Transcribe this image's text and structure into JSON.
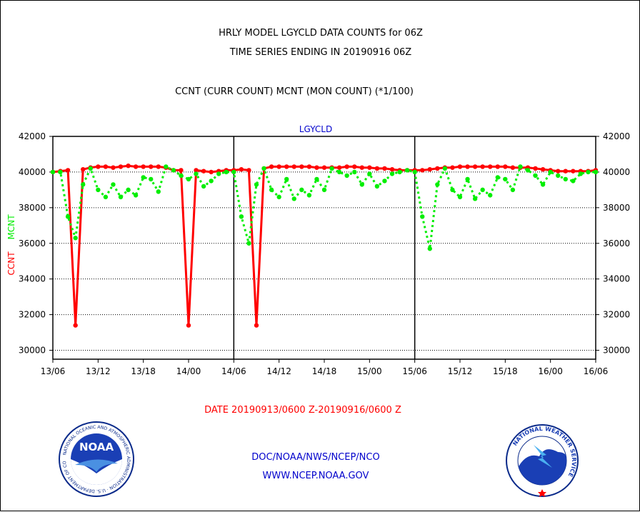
{
  "header": {
    "title_line1": "HRLY MODEL LGYCLD DATA COUNTS for 06Z",
    "title_line2": "TIME SERIES ENDING IN 20190916 06Z",
    "title_line3": "CCNT (CURR COUNT) MCNT (MON COUNT) (*1/100)"
  },
  "footer": {
    "date_range": "DATE 20190913/0600 Z-20190916/0600 Z",
    "org": "DOC/NOAA/NWS/NCEP/NCO",
    "url": "WWW.NCEP.NOAA.GOV"
  },
  "logos": {
    "noaa_text": "NOAA",
    "noaa_ring_text": "NATIONAL OCEANIC AND ATMOSPHERIC ADMINISTRATION · U.S. DEPARTMENT OF COMMERCE ·",
    "nws_ring_text": "NATIONAL WEATHER SERVICE"
  },
  "colors": {
    "ccnt": "#ff0000",
    "mcnt": "#00ee00",
    "panel_label": "#0000cc"
  },
  "chart_data": {
    "type": "line",
    "title": "LGYCLD",
    "ylabel_ccnt": "CCNT",
    "ylabel_mcnt": "MCNT",
    "ylim": [
      29500,
      42000
    ],
    "yticks": [
      30000,
      32000,
      34000,
      36000,
      38000,
      40000,
      42000
    ],
    "ytick_labels": [
      "30000",
      "32000",
      "34000",
      "36000",
      "38000",
      "40000",
      "42000"
    ],
    "xlim": [
      0,
      72
    ],
    "xticks": [
      0,
      6,
      12,
      18,
      24,
      30,
      36,
      42,
      48,
      54,
      60,
      66,
      72
    ],
    "xtick_labels": [
      "13/06",
      "13/12",
      "13/18",
      "14/00",
      "14/06",
      "14/12",
      "14/18",
      "15/00",
      "15/06",
      "15/12",
      "15/18",
      "16/00",
      "16/06"
    ],
    "panel_separators": [
      24,
      48
    ],
    "series": [
      {
        "name": "CCNT",
        "style": "solid",
        "color": "#ff0000",
        "x": [
          0,
          1,
          2,
          3,
          4,
          5,
          6,
          7,
          8,
          9,
          10,
          11,
          12,
          13,
          14,
          15,
          16,
          17,
          18,
          19,
          20,
          21,
          22,
          23,
          24,
          25,
          26,
          27,
          28,
          29,
          30,
          31,
          32,
          33,
          34,
          35,
          36,
          37,
          38,
          39,
          40,
          41,
          42,
          43,
          44,
          45,
          46,
          47,
          48,
          49,
          50,
          51,
          52,
          53,
          54,
          55,
          56,
          57,
          58,
          59,
          60,
          61,
          62,
          63,
          64,
          65,
          66,
          67,
          68,
          69,
          70,
          71,
          72
        ],
        "values": [
          40000,
          40050,
          40100,
          31400,
          40150,
          40250,
          40300,
          40300,
          40250,
          40300,
          40350,
          40300,
          40300,
          40300,
          40300,
          40250,
          40100,
          40100,
          31400,
          40100,
          40050,
          40000,
          40050,
          40100,
          40100,
          40150,
          40100,
          31400,
          40200,
          40300,
          40300,
          40300,
          40300,
          40300,
          40300,
          40250,
          40250,
          40250,
          40250,
          40300,
          40300,
          40250,
          40250,
          40200,
          40200,
          40150,
          40100,
          40100,
          40100,
          40100,
          40150,
          40200,
          40250,
          40250,
          40300,
          40300,
          40300,
          40300,
          40300,
          40300,
          40300,
          40250,
          40250,
          40250,
          40200,
          40150,
          40100,
          40050,
          40050,
          40050,
          40050,
          40050,
          40100
        ]
      },
      {
        "name": "MCNT",
        "style": "dotted",
        "color": "#00ee00",
        "x": [
          0,
          1,
          2,
          3,
          4,
          5,
          6,
          7,
          8,
          9,
          10,
          11,
          12,
          13,
          14,
          15,
          16,
          17,
          18,
          19,
          20,
          21,
          22,
          23,
          24,
          25,
          26,
          27,
          28,
          29,
          30,
          31,
          32,
          33,
          34,
          35,
          36,
          37,
          38,
          39,
          40,
          41,
          42,
          43,
          44,
          45,
          46,
          47,
          48,
          49,
          50,
          51,
          52,
          53,
          54,
          55,
          56,
          57,
          58,
          59,
          60,
          61,
          62,
          63,
          64,
          65,
          66,
          67,
          68,
          69,
          70,
          71,
          72
        ],
        "values": [
          40000,
          40000,
          37500,
          36300,
          39300,
          40200,
          39000,
          38600,
          39300,
          38600,
          39000,
          38700,
          39700,
          39600,
          38900,
          40300,
          40100,
          39800,
          39600,
          39900,
          39200,
          39500,
          39900,
          40000,
          40000,
          37500,
          36000,
          39300,
          40200,
          39000,
          38600,
          39600,
          38500,
          39000,
          38700,
          39600,
          39000,
          40200,
          40000,
          39800,
          40000,
          39300,
          39900,
          39200,
          39500,
          39900,
          40000,
          40100,
          40000,
          37500,
          35700,
          39300,
          40200,
          39000,
          38600,
          39600,
          38500,
          39000,
          38700,
          39700,
          39600,
          39000,
          40300,
          40100,
          39800,
          39300,
          40000,
          39800,
          39600,
          39500,
          39900,
          40000,
          40000
        ]
      }
    ]
  }
}
